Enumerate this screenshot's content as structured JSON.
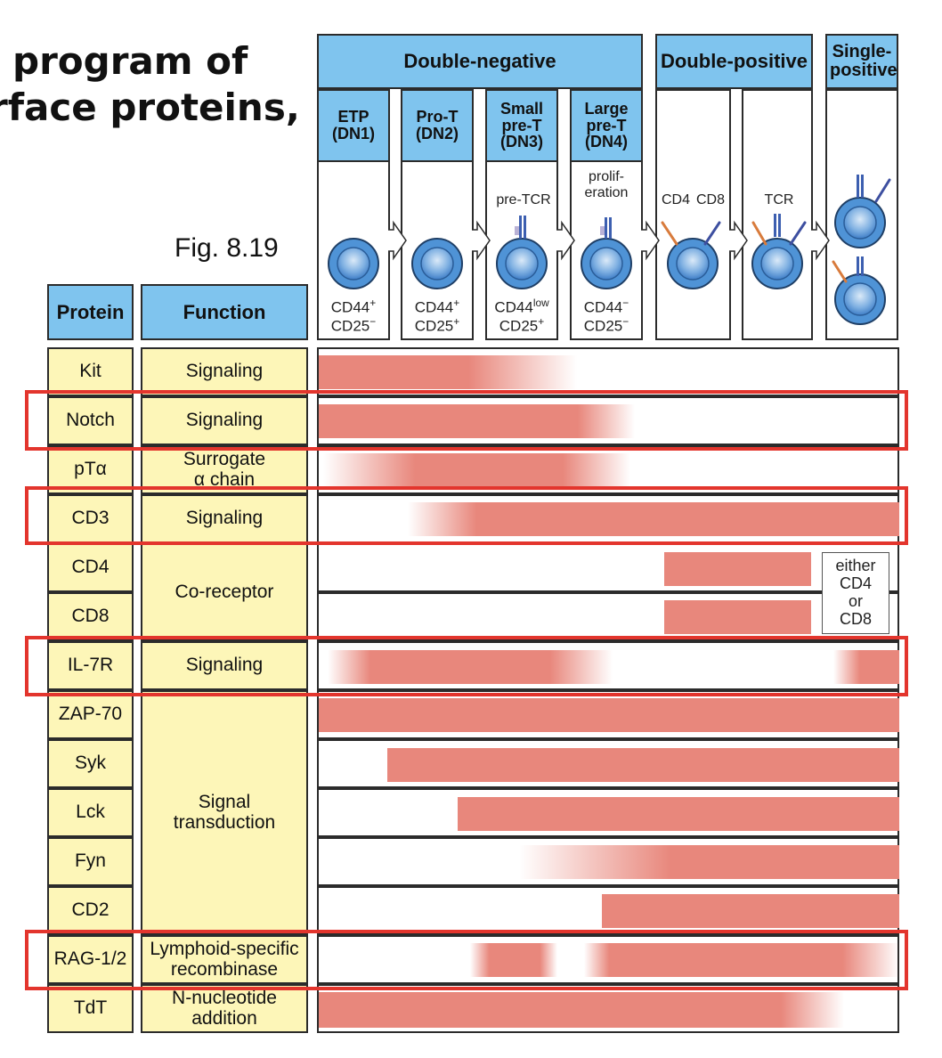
{
  "title": {
    "line1": "program of",
    "line2": "rface proteins,"
  },
  "figure_label": "Fig. 8.19",
  "phases": {
    "double_negative": "Double-negative",
    "double_positive": "Double-positive",
    "single_positive": "Single-positive"
  },
  "stages": [
    {
      "name": "ETP\n(DN1)",
      "markers": "CD44+\nCD25−"
    },
    {
      "name": "Pro-T\n(DN2)",
      "markers": "CD44+\nCD25+"
    },
    {
      "name": "Small\npre-T\n(DN3)",
      "markers": "CD44low\nCD25+"
    },
    {
      "name": "Large\npre-T\n(DN4)",
      "markers": "CD44−\nCD25−"
    }
  ],
  "annotations": {
    "pre_tcr": "pre-TCR",
    "proliferation": "prolif-\neration",
    "cd4": "CD4",
    "cd8": "CD8",
    "tcr": "TCR"
  },
  "column_headers": {
    "protein": "Protein",
    "function": "Function"
  },
  "rows": [
    {
      "protein": "Kit",
      "function": "Signaling",
      "highlighted": false
    },
    {
      "protein": "Notch",
      "function": "Signaling",
      "highlighted": true
    },
    {
      "protein": "pTα",
      "function": "Surrogate\nα chain",
      "highlighted": false
    },
    {
      "protein": "CD3",
      "function": "Signaling",
      "highlighted": true
    },
    {
      "protein": "CD4",
      "function": "Co-receptor",
      "highlighted": false
    },
    {
      "protein": "CD8",
      "function": "Co-receptor",
      "highlighted": false
    },
    {
      "protein": "IL-7R",
      "function": "Signaling",
      "highlighted": true
    },
    {
      "protein": "ZAP-70",
      "function": "Signal\ntransduction",
      "highlighted": false
    },
    {
      "protein": "Syk",
      "function": "Signal\ntransduction",
      "highlighted": false
    },
    {
      "protein": "Lck",
      "function": "Signal\ntransduction",
      "highlighted": false
    },
    {
      "protein": "Fyn",
      "function": "Signal\ntransduction",
      "highlighted": false
    },
    {
      "protein": "CD2",
      "function": "Signal\ntransduction",
      "highlighted": false
    },
    {
      "protein": "RAG-1/2",
      "function": "Lymphoid-specific\nrecombinase",
      "highlighted": true
    },
    {
      "protein": "TdT",
      "function": "N-nucleotide\naddition",
      "highlighted": false
    }
  ],
  "either_note": "either\nCD4\nor\nCD8",
  "colors": {
    "header_blue": "#7fc4ee",
    "cell_yellow": "#fdf6b8",
    "expression_bar": "#e8877c",
    "highlight": "#e3352d",
    "cell_blue": "#4f93d6"
  }
}
